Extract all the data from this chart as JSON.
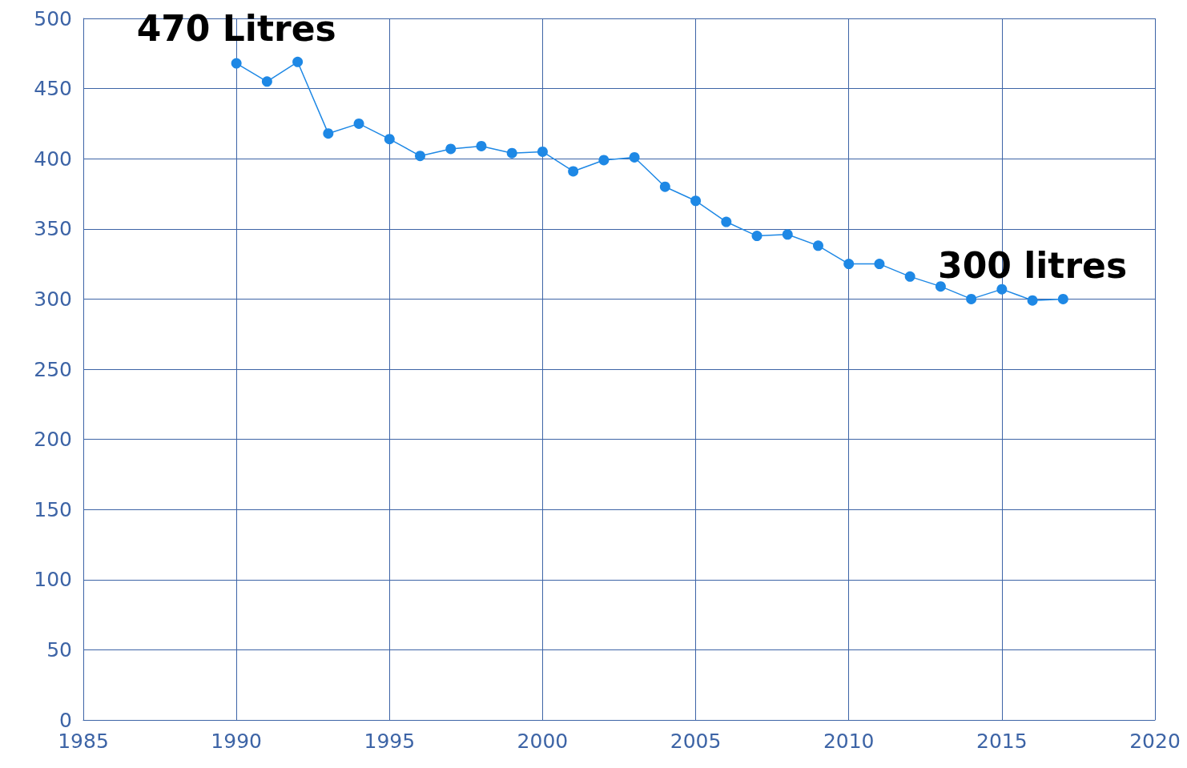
{
  "chart_data": {
    "type": "line",
    "x": [
      1990,
      1991,
      1992,
      1993,
      1994,
      1995,
      1996,
      1997,
      1998,
      1999,
      2000,
      2001,
      2002,
      2003,
      2004,
      2005,
      2006,
      2007,
      2008,
      2009,
      2010,
      2011,
      2012,
      2013,
      2014,
      2015,
      2016,
      2017
    ],
    "series": [
      {
        "color": "#1e88e5",
        "values": [
          468,
          455,
          469,
          418,
          425,
          414,
          402,
          407,
          409,
          404,
          405,
          391,
          399,
          401,
          380,
          370,
          355,
          345,
          346,
          338,
          325,
          325,
          316,
          309,
          300,
          307,
          299,
          300
        ]
      }
    ],
    "xlim": [
      1985,
      2020
    ],
    "xticks": [
      1985,
      1990,
      1995,
      2000,
      2005,
      2010,
      2015,
      2020
    ],
    "ylim": [
      0,
      500
    ],
    "yticks": [
      0,
      50,
      100,
      150,
      200,
      250,
      300,
      350,
      400,
      450,
      500
    ],
    "grid": true,
    "marker": "circle",
    "line_style": "solid",
    "annotations": [
      {
        "text": "470 Litres",
        "x": 1990,
        "y": 468
      },
      {
        "text": "300 litres",
        "x": 2016,
        "y": 299
      }
    ]
  }
}
